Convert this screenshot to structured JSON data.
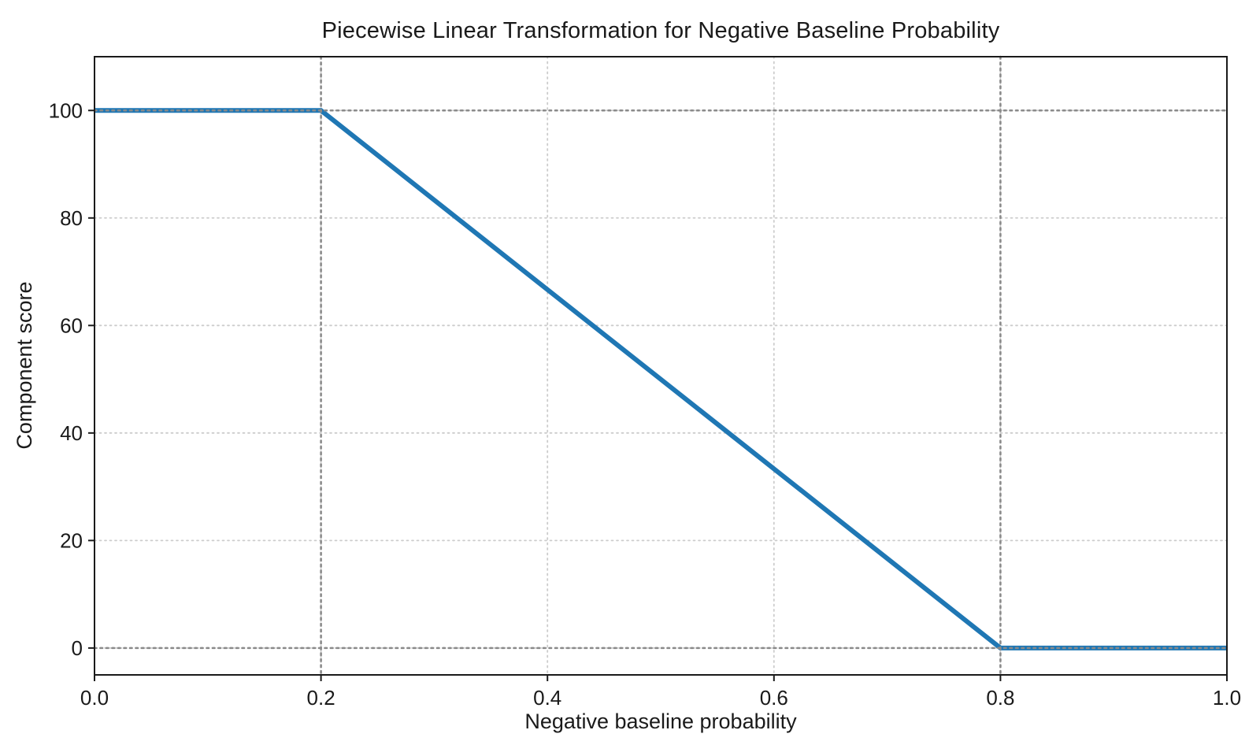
{
  "title": "Piecewise Linear Transformation for Negative Baseline Probability",
  "chart_data": {
    "type": "line",
    "title": "Piecewise Linear Transformation for Negative Baseline Probability",
    "xlabel": "Negative baseline probability",
    "ylabel": "Component score",
    "xlim": [
      0.0,
      1.0
    ],
    "ylim": [
      -5,
      110
    ],
    "x_ticks": [
      0.0,
      0.2,
      0.4,
      0.6,
      0.8,
      1.0
    ],
    "x_tick_labels": [
      "0.0",
      "0.2",
      "0.4",
      "0.6",
      "0.8",
      "1.0"
    ],
    "y_ticks": [
      0,
      20,
      40,
      60,
      80,
      100
    ],
    "y_tick_labels": [
      "0",
      "20",
      "40",
      "60",
      "80",
      "100"
    ],
    "grid": true,
    "legend_position": "none",
    "series": [
      {
        "name": "piecewise-transform",
        "x": [
          0.0,
          0.2,
          0.8,
          1.0
        ],
        "y": [
          100,
          100,
          0,
          0
        ]
      }
    ],
    "breakpoints": {
      "flat_high_until_x": 0.2,
      "flat_high_value": 100,
      "flat_low_from_x": 0.8,
      "flat_low_value": 0
    },
    "reference_lines": {
      "vertical_x": [
        0.2,
        0.8
      ],
      "horizontal_y": [
        0,
        100
      ]
    },
    "colors": {
      "line": "#1f77b4",
      "reference_line": "#8a8a8a",
      "gridline": "#cccccc",
      "axis": "#1a1a1a",
      "background": "#ffffff"
    }
  }
}
